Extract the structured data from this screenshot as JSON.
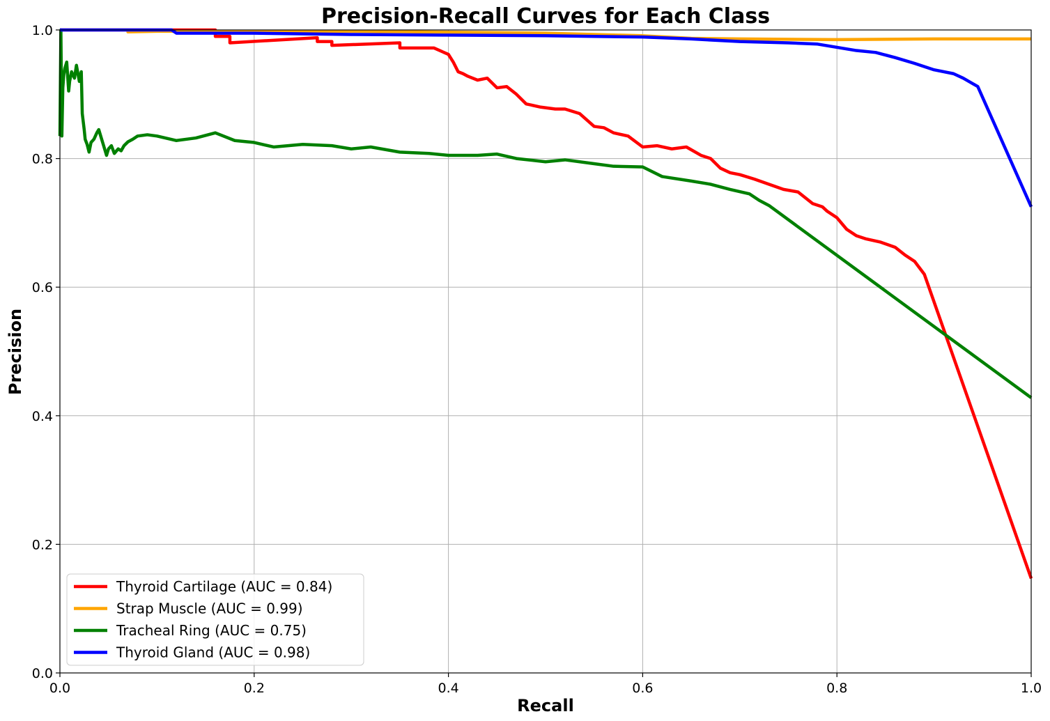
{
  "chart_data": {
    "type": "line",
    "title": "Precision-Recall Curves for Each Class",
    "xlabel": "Recall",
    "ylabel": "Precision",
    "xlim": [
      0.0,
      1.0
    ],
    "ylim": [
      0.0,
      1.0
    ],
    "xticks": [
      "0.0",
      "0.2",
      "0.4",
      "0.6",
      "0.8",
      "1.0"
    ],
    "yticks": [
      "0.0",
      "0.2",
      "0.4",
      "0.6",
      "0.8",
      "1.0"
    ],
    "grid": true,
    "legend_position": "lower-left",
    "series": [
      {
        "name": "Thyroid Cartilage (AUC = 0.84)",
        "color": "#ff0000",
        "x": [
          0.0,
          0.16,
          0.16,
          0.175,
          0.175,
          0.265,
          0.265,
          0.28,
          0.28,
          0.35,
          0.35,
          0.385,
          0.4,
          0.405,
          0.41,
          0.415,
          0.42,
          0.43,
          0.44,
          0.45,
          0.46,
          0.47,
          0.48,
          0.495,
          0.51,
          0.52,
          0.535,
          0.55,
          0.56,
          0.57,
          0.585,
          0.6,
          0.615,
          0.63,
          0.645,
          0.66,
          0.67,
          0.68,
          0.69,
          0.7,
          0.715,
          0.73,
          0.745,
          0.76,
          0.775,
          0.785,
          0.79,
          0.8,
          0.81,
          0.82,
          0.83,
          0.845,
          0.86,
          0.87,
          0.88,
          0.885,
          0.89,
          1.0
        ],
        "y": [
          1.0,
          1.0,
          0.99,
          0.99,
          0.98,
          0.988,
          0.982,
          0.982,
          0.976,
          0.98,
          0.972,
          0.972,
          0.962,
          0.95,
          0.935,
          0.932,
          0.928,
          0.922,
          0.925,
          0.91,
          0.912,
          0.9,
          0.885,
          0.88,
          0.877,
          0.877,
          0.87,
          0.85,
          0.848,
          0.84,
          0.835,
          0.818,
          0.82,
          0.815,
          0.818,
          0.805,
          0.8,
          0.785,
          0.778,
          0.775,
          0.768,
          0.76,
          0.752,
          0.748,
          0.73,
          0.725,
          0.718,
          0.708,
          0.69,
          0.68,
          0.675,
          0.67,
          0.662,
          0.65,
          0.64,
          0.63,
          0.62,
          0.147
        ]
      },
      {
        "name": "Strap Muscle (AUC = 0.99)",
        "color": "#ffa500",
        "x": [
          0.0,
          0.07,
          0.07,
          0.1,
          0.3,
          0.5,
          0.6,
          0.65,
          0.7,
          0.8,
          0.9,
          1.0
        ],
        "y": [
          1.0,
          1.0,
          0.997,
          0.998,
          0.998,
          0.995,
          0.991,
          0.987,
          0.986,
          0.985,
          0.986,
          0.986
        ]
      },
      {
        "name": "Tracheal Ring (AUC = 0.75)",
        "color": "#008000",
        "x": [
          0.0,
          0.001,
          0.002,
          0.003,
          0.004,
          0.005,
          0.007,
          0.009,
          0.01,
          0.012,
          0.015,
          0.017,
          0.02,
          0.022,
          0.023,
          0.025,
          0.026,
          0.028,
          0.03,
          0.032,
          0.035,
          0.038,
          0.04,
          0.042,
          0.045,
          0.048,
          0.05,
          0.053,
          0.056,
          0.06,
          0.063,
          0.066,
          0.07,
          0.075,
          0.08,
          0.09,
          0.1,
          0.12,
          0.14,
          0.16,
          0.18,
          0.2,
          0.22,
          0.25,
          0.28,
          0.3,
          0.32,
          0.35,
          0.38,
          0.4,
          0.43,
          0.45,
          0.47,
          0.5,
          0.52,
          0.55,
          0.57,
          0.6,
          0.62,
          0.65,
          0.67,
          0.69,
          0.71,
          0.72,
          0.73,
          1.0
        ],
        "y": [
          0.835,
          1.0,
          0.835,
          0.91,
          0.93,
          0.94,
          0.95,
          0.905,
          0.92,
          0.935,
          0.925,
          0.945,
          0.92,
          0.935,
          0.87,
          0.845,
          0.83,
          0.822,
          0.81,
          0.825,
          0.83,
          0.84,
          0.845,
          0.835,
          0.82,
          0.805,
          0.815,
          0.82,
          0.808,
          0.815,
          0.812,
          0.82,
          0.826,
          0.83,
          0.835,
          0.837,
          0.835,
          0.828,
          0.832,
          0.84,
          0.828,
          0.825,
          0.818,
          0.822,
          0.82,
          0.815,
          0.818,
          0.81,
          0.808,
          0.805,
          0.805,
          0.807,
          0.8,
          0.795,
          0.798,
          0.792,
          0.788,
          0.787,
          0.772,
          0.765,
          0.76,
          0.752,
          0.745,
          0.735,
          0.727,
          0.428
        ]
      },
      {
        "name": "Thyroid Gland (AUC = 0.98)",
        "color": "#0000ff",
        "x": [
          0.0,
          0.115,
          0.12,
          0.2,
          0.3,
          0.4,
          0.5,
          0.55,
          0.6,
          0.65,
          0.7,
          0.75,
          0.78,
          0.8,
          0.82,
          0.84,
          0.86,
          0.88,
          0.9,
          0.92,
          0.93,
          0.945,
          1.0
        ],
        "y": [
          1.0,
          1.0,
          0.995,
          0.995,
          0.993,
          0.992,
          0.991,
          0.99,
          0.989,
          0.986,
          0.982,
          0.98,
          0.978,
          0.973,
          0.968,
          0.965,
          0.957,
          0.948,
          0.938,
          0.932,
          0.925,
          0.912,
          0.725
        ]
      }
    ]
  }
}
